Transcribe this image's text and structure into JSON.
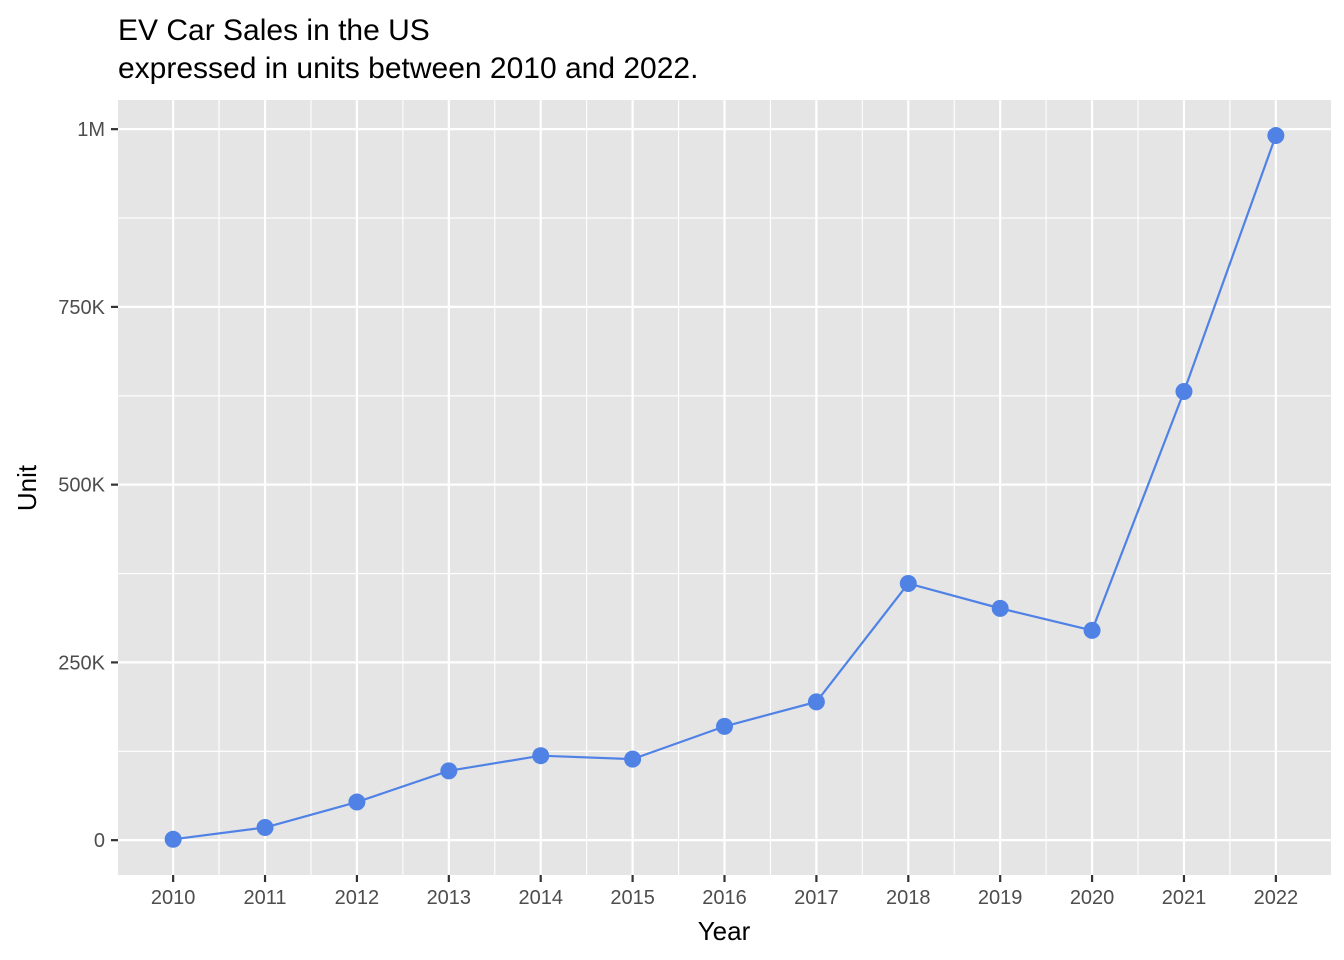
{
  "chart_data": {
    "type": "line",
    "title": "EV Car Sales in the US",
    "subtitle": "expressed in units between 2010 and 2022.",
    "xlabel": "Year",
    "ylabel": "Unit",
    "x": [
      2010,
      2011,
      2012,
      2013,
      2014,
      2015,
      2016,
      2017,
      2018,
      2019,
      2020,
      2021,
      2022
    ],
    "series": [
      {
        "values": [
          1200,
          17800,
          53600,
          97500,
          118800,
          114000,
          160000,
          194500,
          361000,
          326000,
          295000,
          631000,
          991000
        ],
        "color": "#5082e6"
      }
    ],
    "y_ticks": [
      {
        "value": 0,
        "label": "0"
      },
      {
        "value": 250000,
        "label": "250K"
      },
      {
        "value": 500000,
        "label": "500K"
      },
      {
        "value": 750000,
        "label": "750K"
      },
      {
        "value": 1000000,
        "label": "1M"
      }
    ],
    "x_tick_labels": [
      "2010",
      "2011",
      "2012",
      "2013",
      "2014",
      "2015",
      "2016",
      "2017",
      "2018",
      "2019",
      "2020",
      "2021",
      "2022"
    ],
    "xlim": [
      2009.4,
      2022.6
    ],
    "ylim": [
      -49000,
      1041000
    ],
    "grid": true,
    "panel_background": "#e5e5e5",
    "grid_color": "#ffffff"
  }
}
